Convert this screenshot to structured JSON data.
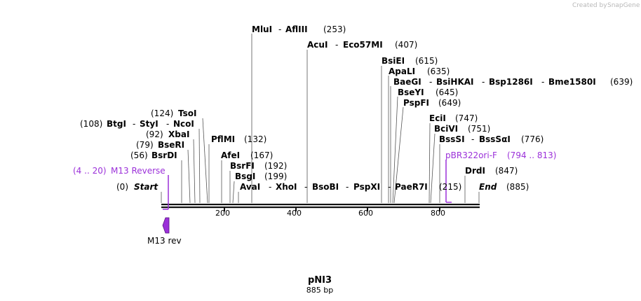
{
  "credit": {
    "prefix": "Created by",
    "brand": "SnapGene"
  },
  "title": "pNI3",
  "length": "885 bp",
  "start": {
    "pos": "(0)",
    "label": "Start"
  },
  "end": {
    "label": "End",
    "pos": "(885)"
  },
  "ruler": {
    "ticks": [
      "200",
      "400",
      "600",
      "800"
    ]
  },
  "features": {
    "m13_reverse": {
      "range": "(4 .. 20)",
      "name": "M13 Reverse"
    },
    "pbr322ori": {
      "name": "pBR322ori-F",
      "range": "(794 .. 813)"
    },
    "m13_rev_label": "M13 rev"
  },
  "sites_left": [
    {
      "pos": "(124)",
      "name": "TsoI"
    },
    {
      "pos": "(108)",
      "name": "BtgI",
      "sep1": "-",
      "name2": "StyI",
      "sep2": "-",
      "name3": "NcoI"
    },
    {
      "pos": "(92)",
      "name": "XbaI"
    },
    {
      "pos": "(79)",
      "name": "BseRI"
    },
    {
      "pos": "(56)",
      "name": "BsrDI"
    }
  ],
  "sites_right": [
    {
      "name": "MluI",
      "sep1": "-",
      "name2": "AflIII",
      "pos": "(253)"
    },
    {
      "name": "AcuI",
      "sep1": "-",
      "name2": "Eco57MI",
      "pos": "(407)"
    },
    {
      "name": "BsiEI",
      "pos": "(615)"
    },
    {
      "name": "ApaLI",
      "pos": "(635)"
    },
    {
      "name": "BaeGI",
      "sep1": "-",
      "name2": "BsiHKAI",
      "sep2": "-",
      "name3": "Bsp1286I",
      "sep3": "-",
      "name4": "Bme1580I",
      "pos": "(639)"
    },
    {
      "name": "BseYI",
      "pos": "(645)"
    },
    {
      "name": "PspFI",
      "pos": "(649)"
    },
    {
      "name": "EciI",
      "pos": "(747)"
    },
    {
      "name": "BciVI",
      "pos": "(751)"
    },
    {
      "name": "BssSI",
      "sep1": "-",
      "name2": "BssSαI",
      "pos": "(776)"
    },
    {
      "name": "DrdI",
      "pos": "(847)"
    },
    {
      "name": "PflMI",
      "pos": "(132)"
    },
    {
      "name": "AfeI",
      "pos": "(167)"
    },
    {
      "name": "BsrFI",
      "pos": "(192)"
    },
    {
      "name": "BsgI",
      "pos": "(199)"
    },
    {
      "name": "AvaI",
      "sep1": "-",
      "name2": "XhoI",
      "sep2": "-",
      "name3": "BsoBI",
      "sep3": "-",
      "name4": "PspXI",
      "sep4": "-",
      "name5": "PaeR7I",
      "pos": "(215)"
    }
  ]
}
